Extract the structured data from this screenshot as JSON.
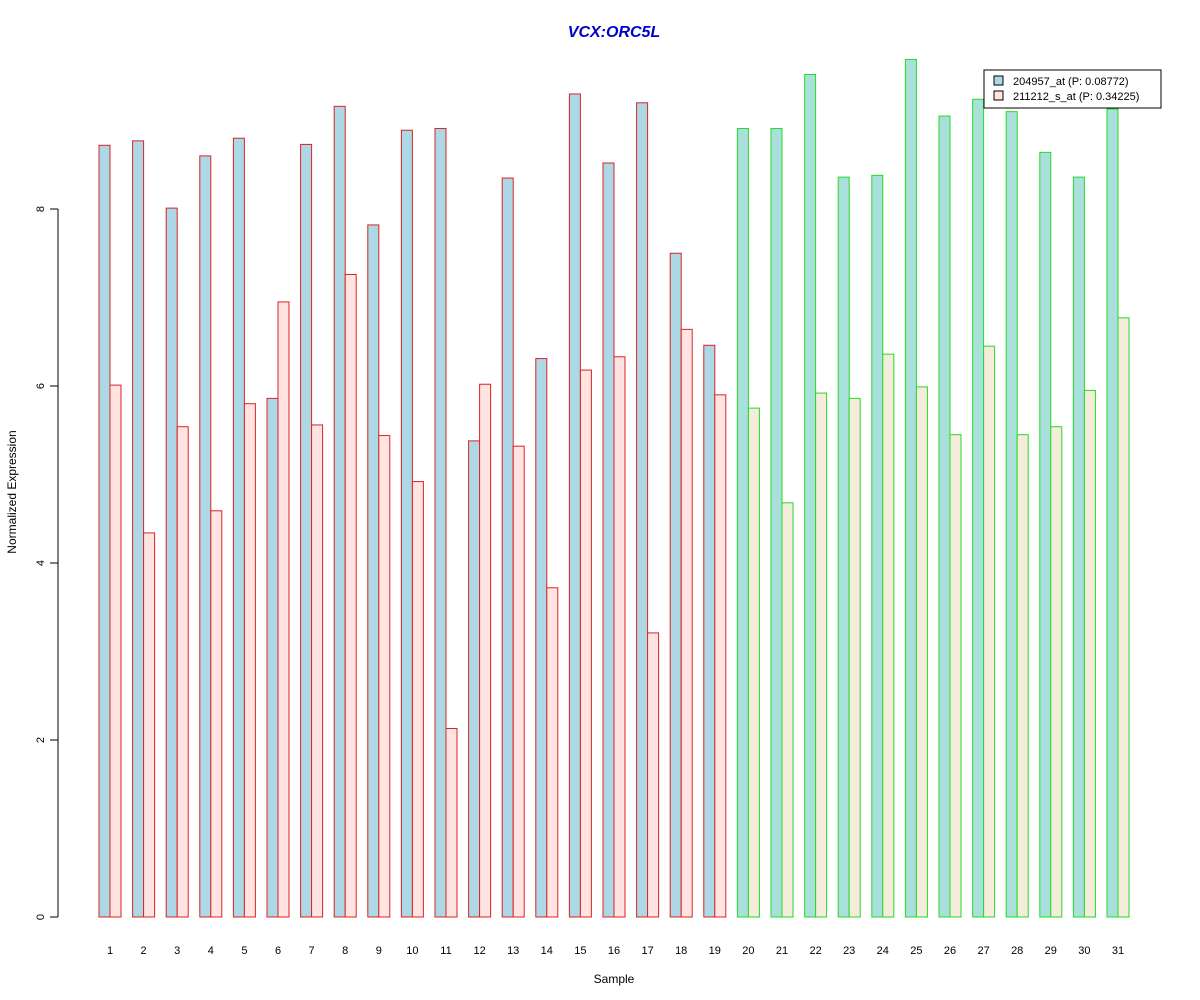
{
  "chart_data": {
    "type": "bar",
    "title": "VCX:ORC5L",
    "xlabel": "Sample",
    "ylabel": "Normalized Expression",
    "ylim": [
      0,
      9.7
    ],
    "yticks": [
      0,
      2,
      4,
      6,
      8
    ],
    "grid": false,
    "legend_position": "top-right",
    "categories": [
      "1",
      "2",
      "3",
      "4",
      "5",
      "6",
      "7",
      "8",
      "9",
      "10",
      "11",
      "12",
      "13",
      "14",
      "15",
      "16",
      "17",
      "18",
      "19",
      "20",
      "21",
      "22",
      "23",
      "24",
      "25",
      "26",
      "27",
      "28",
      "29",
      "30",
      "31"
    ],
    "series": [
      {
        "name": "204957_at (P: 0.08772)",
        "values": [
          8.72,
          8.77,
          8.01,
          8.6,
          8.8,
          5.86,
          8.73,
          9.16,
          7.82,
          8.89,
          8.91,
          5.38,
          8.35,
          6.31,
          9.3,
          8.52,
          9.2,
          7.5,
          6.46,
          8.91,
          8.91,
          9.52,
          8.36,
          8.38,
          9.69,
          9.05,
          9.24,
          9.1,
          8.64,
          8.36,
          9.13
        ]
      },
      {
        "name": "211212_s_at (P: 0.34225)",
        "values": [
          6.01,
          4.34,
          5.54,
          4.59,
          5.8,
          6.95,
          5.56,
          7.26,
          5.44,
          4.92,
          2.13,
          6.02,
          5.32,
          3.72,
          6.18,
          6.33,
          3.21,
          6.64,
          5.9,
          5.75,
          4.68,
          5.92,
          5.86,
          6.36,
          5.99,
          5.45,
          6.45,
          5.45,
          5.54,
          5.95,
          6.77
        ]
      }
    ],
    "groups": [
      {
        "samples": [
          1,
          19
        ],
        "border_color": "#dd2222"
      },
      {
        "samples": [
          20,
          31
        ],
        "border_color": "#22dd22"
      }
    ],
    "colors": {
      "title": "#0000cc",
      "series1_fill_group1": "#add8e6",
      "series2_fill_group1": "#ffe4e1",
      "series1_fill_group2": "#a9e0dc",
      "series2_fill_group2": "#f5ecdc",
      "legend_series1": "#add8e6",
      "legend_series2": "#ffe4e1"
    }
  }
}
